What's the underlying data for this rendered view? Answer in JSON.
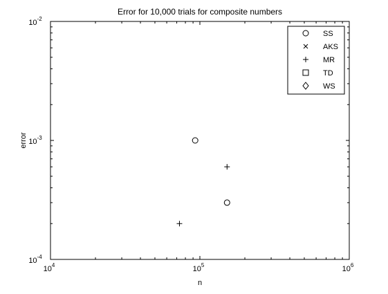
{
  "chart_data": {
    "type": "scatter",
    "title": "Error for 10,000 trials for composite numbers",
    "xlabel": "n",
    "ylabel": "error",
    "xscale": "log",
    "yscale": "log",
    "xlim": [
      10000,
      1000000
    ],
    "ylim": [
      0.0001,
      0.01
    ],
    "grid": false,
    "legend_position": "top-right",
    "xticks": [
      {
        "value": 10000,
        "base": "10",
        "exp": "4"
      },
      {
        "value": 100000,
        "base": "10",
        "exp": "5"
      },
      {
        "value": 1000000,
        "base": "10",
        "exp": "6"
      }
    ],
    "yticks": [
      {
        "value": 0.0001,
        "base": "10",
        "exp": "-4"
      },
      {
        "value": 0.001,
        "base": "10",
        "exp": "-3"
      },
      {
        "value": 0.01,
        "base": "10",
        "exp": "-2"
      }
    ],
    "series": [
      {
        "name": "SS",
        "marker": "circle",
        "points": [
          {
            "x": 93000,
            "y": 0.001
          },
          {
            "x": 152000,
            "y": 0.0003
          }
        ]
      },
      {
        "name": "AKS",
        "marker": "x",
        "points": []
      },
      {
        "name": "MR",
        "marker": "plus",
        "points": [
          {
            "x": 73000,
            "y": 0.0002
          },
          {
            "x": 152000,
            "y": 0.0006
          }
        ]
      },
      {
        "name": "TD",
        "marker": "square",
        "points": []
      },
      {
        "name": "WS",
        "marker": "diamond",
        "points": []
      }
    ]
  }
}
